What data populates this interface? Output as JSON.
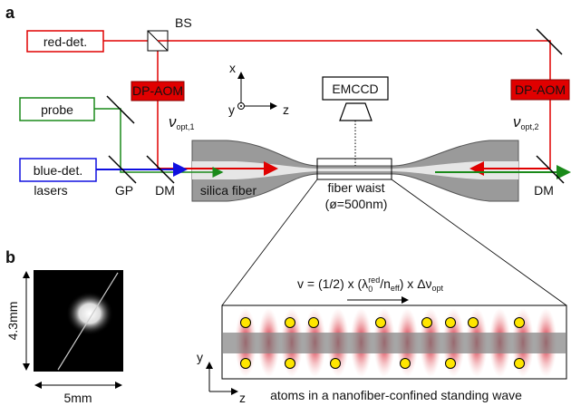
{
  "panel_a": {
    "label": "a",
    "beam_splitter": "BS",
    "red_detector": "red-det.",
    "probe": "probe",
    "blue_detector": "blue-det.",
    "aom_left": "DP-AOM",
    "aom_right": "DP-AOM",
    "freq_left": {
      "symbol": "ν",
      "subscript": "opt,1"
    },
    "freq_right": {
      "symbol": "ν",
      "subscript": "opt,2"
    },
    "camera": "EMCCD",
    "axes": {
      "x": "x",
      "y": "y",
      "z": "z"
    },
    "lasers": "lasers",
    "gp": "GP",
    "dm_left": "DM",
    "fiber": "silica fiber",
    "waist": "fiber waist",
    "diameter": "(ø=500nm)",
    "dm_right": "DM"
  },
  "panel_b": {
    "label": "b",
    "height": "4.3mm",
    "width": "5mm",
    "formula": {
      "start": "v = (1/2) x (λ",
      "sup": "red",
      "sub": "0",
      "mid": "/n",
      "sub2": "eff",
      "end": ") x Δν",
      "sub3": "opt"
    },
    "axes": {
      "y": "y",
      "z": "z"
    },
    "caption": "atoms in a nanofiber-confined standing wave"
  }
}
